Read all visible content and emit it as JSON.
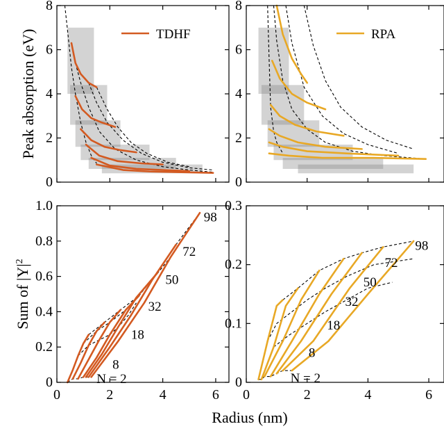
{
  "chart_data": [
    {
      "id": "tl",
      "type": "line",
      "legend": "TDHF",
      "color": "#d35a21",
      "xlim": [
        0,
        6.5
      ],
      "ylim": [
        0,
        8
      ],
      "xticks": [
        0,
        2,
        4,
        6
      ],
      "yticks": [
        0,
        2,
        4,
        6,
        8
      ],
      "ytick_labels": [
        "0",
        "2",
        "4",
        "6",
        "8"
      ],
      "ylabel": "Peak absorption (eV)",
      "boxes": [
        {
          "x": [
            0.4,
            1.4
          ],
          "y": [
            4.0,
            7.0
          ]
        },
        {
          "x": [
            0.5,
            1.9
          ],
          "y": [
            2.6,
            4.4
          ]
        },
        {
          "x": [
            0.7,
            2.4
          ],
          "y": [
            1.6,
            2.8
          ]
        },
        {
          "x": [
            0.9,
            3.5
          ],
          "y": [
            1.0,
            1.7
          ]
        },
        {
          "x": [
            1.2,
            4.5
          ],
          "y": [
            0.6,
            1.1
          ]
        },
        {
          "x": [
            1.7,
            5.5
          ],
          "y": [
            0.4,
            0.8
          ]
        }
      ],
      "series": [
        {
          "x": [
            0.55,
            0.7,
            0.9,
            1.2,
            1.5
          ],
          "y": [
            6.3,
            5.4,
            4.9,
            4.5,
            4.3
          ]
        },
        {
          "x": [
            0.7,
            0.95,
            1.3,
            1.7,
            2.2
          ],
          "y": [
            3.9,
            3.3,
            2.9,
            2.7,
            2.5
          ]
        },
        {
          "x": [
            0.9,
            1.3,
            1.8,
            2.4,
            3.0
          ],
          "y": [
            2.4,
            1.9,
            1.6,
            1.45,
            1.35
          ]
        },
        {
          "x": [
            1.1,
            1.6,
            2.3,
            3.2,
            4.0
          ],
          "y": [
            1.7,
            1.2,
            0.95,
            0.85,
            0.8
          ]
        },
        {
          "x": [
            1.3,
            2.0,
            3.0,
            4.0,
            5.0
          ],
          "y": [
            1.1,
            0.75,
            0.6,
            0.55,
            0.5
          ]
        },
        {
          "x": [
            1.5,
            2.5,
            3.5,
            4.7,
            5.9
          ],
          "y": [
            0.8,
            0.55,
            0.48,
            0.45,
            0.42
          ]
        }
      ],
      "dashed": [
        {
          "x": [
            0.3,
            0.4,
            0.55,
            0.7,
            0.9,
            1.1,
            1.3,
            1.5
          ],
          "y": [
            8.0,
            6.9,
            5.2,
            4.0,
            2.7,
            1.8,
            1.2,
            0.85
          ]
        },
        {
          "x": [
            0.7,
            0.9,
            1.2,
            1.6,
            2.2,
            3.0,
            4.0,
            5.0,
            5.9
          ],
          "y": [
            5.4,
            4.5,
            3.4,
            2.3,
            1.5,
            1.0,
            0.7,
            0.55,
            0.45
          ]
        },
        {
          "x": [
            1.2,
            1.5,
            1.9,
            2.5,
            3.2,
            4.0,
            5.0,
            5.9
          ],
          "y": [
            4.5,
            3.6,
            2.7,
            1.9,
            1.3,
            0.9,
            0.65,
            0.55
          ]
        },
        {
          "x": [
            1.5,
            1.9,
            2.3,
            2.8,
            3.4,
            4.2,
            5.0
          ],
          "y": [
            4.3,
            3.3,
            2.5,
            1.8,
            1.3,
            0.9,
            0.7
          ]
        }
      ]
    },
    {
      "id": "tr",
      "type": "line",
      "legend": "RPA",
      "color": "#e8a825",
      "xlim": [
        0,
        6.5
      ],
      "ylim": [
        0,
        8
      ],
      "xticks": [
        0,
        2,
        4,
        6
      ],
      "yticks": [
        0,
        2,
        4,
        6,
        8
      ],
      "ytick_labels": [
        "0",
        "2",
        "4",
        "6",
        "8"
      ],
      "ylabel": "",
      "boxes": [
        {
          "x": [
            0.4,
            1.4
          ],
          "y": [
            4.0,
            7.0
          ]
        },
        {
          "x": [
            0.5,
            1.9
          ],
          "y": [
            2.6,
            4.4
          ]
        },
        {
          "x": [
            0.7,
            2.4
          ],
          "y": [
            1.6,
            2.8
          ]
        },
        {
          "x": [
            0.9,
            3.5
          ],
          "y": [
            1.0,
            1.7
          ]
        },
        {
          "x": [
            1.2,
            4.5
          ],
          "y": [
            0.6,
            1.1
          ]
        },
        {
          "x": [
            1.7,
            5.5
          ],
          "y": [
            0.4,
            0.8
          ]
        }
      ],
      "series": [
        {
          "x": [
            1.0,
            1.2,
            1.5,
            1.8,
            2.0
          ],
          "y": [
            8.0,
            6.7,
            5.6,
            4.9,
            4.5
          ]
        },
        {
          "x": [
            0.85,
            1.1,
            1.5,
            2.0,
            2.6
          ],
          "y": [
            5.5,
            4.7,
            4.0,
            3.6,
            3.3
          ]
        },
        {
          "x": [
            0.8,
            1.1,
            1.6,
            2.3,
            3.2
          ],
          "y": [
            3.5,
            3.0,
            2.6,
            2.3,
            2.1
          ]
        },
        {
          "x": [
            0.75,
            1.1,
            1.7,
            2.6,
            3.8
          ],
          "y": [
            2.4,
            2.1,
            1.8,
            1.6,
            1.5
          ]
        },
        {
          "x": [
            0.75,
            1.2,
            2.0,
            3.3,
            5.0
          ],
          "y": [
            1.8,
            1.6,
            1.4,
            1.3,
            1.2
          ]
        },
        {
          "x": [
            0.75,
            1.4,
            2.5,
            4.2,
            5.9
          ],
          "y": [
            1.3,
            1.2,
            1.1,
            1.1,
            1.05
          ]
        }
      ],
      "dashed": [
        {
          "x": [
            0.7,
            0.75,
            0.8,
            0.9,
            1.0,
            1.2
          ],
          "y": [
            8.0,
            5.6,
            3.4,
            2.3,
            1.8,
            1.3
          ]
        },
        {
          "x": [
            0.9,
            1.0,
            1.2,
            1.5,
            2.0,
            2.6,
            3.5,
            4.5,
            5.9
          ],
          "y": [
            8.0,
            6.4,
            4.6,
            3.3,
            2.4,
            1.8,
            1.4,
            1.2,
            1.05
          ]
        },
        {
          "x": [
            1.3,
            1.5,
            1.9,
            2.5,
            3.2,
            4.0,
            5.0
          ],
          "y": [
            8.0,
            6.3,
            4.3,
            3.0,
            2.2,
            1.7,
            1.3
          ]
        },
        {
          "x": [
            1.9,
            2.2,
            2.6,
            3.1,
            3.8,
            4.6,
            5.5
          ],
          "y": [
            8.0,
            6.2,
            4.6,
            3.4,
            2.5,
            1.9,
            1.5
          ]
        }
      ]
    },
    {
      "id": "bl",
      "type": "line",
      "color": "#d35a21",
      "xlim": [
        0,
        6.5
      ],
      "ylim": [
        0,
        1.0
      ],
      "xticks": [
        0,
        2,
        4,
        6
      ],
      "yticks": [
        0,
        0.2,
        0.4,
        0.6,
        0.8,
        1.0
      ],
      "ytick_labels": [
        "0",
        "0.2",
        "0.4",
        "0.6",
        "0.8",
        "1.0"
      ],
      "xlabel": "Radius (nm)",
      "ylabel_main": "Sum of |Y|",
      "ylabel_sup": "2",
      "series": [
        {
          "x": [
            0.4,
            0.6,
            0.8,
            1.0,
            1.2
          ],
          "y": [
            0.0,
            0.07,
            0.15,
            0.22,
            0.27
          ]
        },
        {
          "x": [
            0.6,
            0.9,
            1.2,
            1.5,
            1.8
          ],
          "y": [
            0.02,
            0.11,
            0.21,
            0.29,
            0.34
          ]
        },
        {
          "x": [
            0.8,
            1.2,
            1.6,
            2.0,
            2.4
          ],
          "y": [
            0.02,
            0.13,
            0.24,
            0.34,
            0.41
          ]
        },
        {
          "x": [
            1.0,
            1.5,
            2.0,
            2.6,
            3.1
          ],
          "y": [
            0.03,
            0.14,
            0.27,
            0.41,
            0.49
          ]
        },
        {
          "x": [
            1.1,
            1.7,
            2.3,
            3.0,
            3.8
          ],
          "y": [
            0.03,
            0.16,
            0.31,
            0.48,
            0.62
          ]
        },
        {
          "x": [
            1.2,
            2.0,
            2.8,
            3.6,
            4.5
          ],
          "y": [
            0.03,
            0.2,
            0.38,
            0.58,
            0.78
          ]
        },
        {
          "x": [
            1.3,
            2.3,
            3.3,
            4.3,
            5.4
          ],
          "y": [
            0.03,
            0.23,
            0.45,
            0.71,
            0.96
          ]
        }
      ],
      "dashed": [
        {
          "x": [
            1.2,
            1.8,
            2.4,
            3.1,
            3.8,
            4.5,
            5.4
          ],
          "y": [
            0.27,
            0.34,
            0.41,
            0.49,
            0.62,
            0.78,
            0.96
          ]
        },
        {
          "x": [
            0.4,
            0.6,
            0.8,
            1.0,
            1.1,
            1.2,
            1.3
          ],
          "y": [
            0.0,
            0.02,
            0.02,
            0.03,
            0.03,
            0.03,
            0.03
          ]
        },
        {
          "x": [
            0.8,
            1.2,
            1.6,
            2.0,
            2.3,
            2.7,
            3.0
          ],
          "y": [
            0.15,
            0.21,
            0.24,
            0.27,
            0.31,
            0.38,
            0.45
          ]
        },
        {
          "x": [
            1.0,
            1.5,
            2.0,
            2.6,
            3.0,
            3.6,
            4.3
          ],
          "y": [
            0.22,
            0.29,
            0.34,
            0.41,
            0.48,
            0.58,
            0.71
          ]
        }
      ],
      "annotations": [
        {
          "text": "98",
          "x": 5.55,
          "y": 0.935
        },
        {
          "text": "72",
          "x": 4.75,
          "y": 0.74
        },
        {
          "text": "50",
          "x": 4.1,
          "y": 0.58
        },
        {
          "text": "32",
          "x": 3.45,
          "y": 0.43
        },
        {
          "text": "18",
          "x": 2.8,
          "y": 0.27
        },
        {
          "text": "8",
          "x": 2.1,
          "y": 0.1
        },
        {
          "text": "N = 2",
          "x": 1.5,
          "y": 0.02
        }
      ]
    },
    {
      "id": "br",
      "type": "line",
      "color": "#e8a825",
      "xlim": [
        0,
        6.5
      ],
      "ylim": [
        0,
        0.3
      ],
      "xticks": [
        0,
        2,
        4,
        6
      ],
      "yticks": [
        0,
        0.1,
        0.2,
        0.3
      ],
      "ytick_labels": [
        "0",
        "0.1",
        "0.2",
        "0.3"
      ],
      "series": [
        {
          "x": [
            0.4,
            0.7,
            1.0,
            1.2
          ],
          "y": [
            0.005,
            0.07,
            0.13,
            0.14
          ]
        },
        {
          "x": [
            0.5,
            0.9,
            1.3,
            1.7
          ],
          "y": [
            0.005,
            0.06,
            0.13,
            0.16
          ]
        },
        {
          "x": [
            0.6,
            1.2,
            1.8,
            2.4
          ],
          "y": [
            0.01,
            0.07,
            0.14,
            0.19
          ]
        },
        {
          "x": [
            0.8,
            1.5,
            2.4,
            3.2
          ],
          "y": [
            0.01,
            0.07,
            0.15,
            0.21
          ]
        },
        {
          "x": [
            1.0,
            1.8,
            2.8,
            3.8
          ],
          "y": [
            0.015,
            0.07,
            0.15,
            0.22
          ]
        },
        {
          "x": [
            1.2,
            2.2,
            3.4,
            4.5
          ],
          "y": [
            0.02,
            0.07,
            0.16,
            0.23
          ]
        },
        {
          "x": [
            1.5,
            2.7,
            4.0,
            5.5
          ],
          "y": [
            0.02,
            0.07,
            0.15,
            0.24
          ]
        }
      ],
      "dashed": [
        {
          "x": [
            1.2,
            1.7,
            2.4,
            3.2,
            3.8,
            4.5,
            5.5
          ],
          "y": [
            0.14,
            0.16,
            0.19,
            0.21,
            0.22,
            0.23,
            0.24
          ]
        },
        {
          "x": [
            0.4,
            0.5,
            0.6,
            0.8,
            1.0,
            1.2,
            1.5
          ],
          "y": [
            0.005,
            0.005,
            0.01,
            0.01,
            0.015,
            0.02,
            0.02
          ]
        },
        {
          "x": [
            0.7,
            1.0,
            1.5,
            2.0,
            2.6,
            3.3,
            4.2,
            5.5
          ],
          "y": [
            0.07,
            0.1,
            0.12,
            0.14,
            0.16,
            0.18,
            0.2,
            0.21
          ]
        },
        {
          "x": [
            0.9,
            1.4,
            2.0,
            2.6,
            3.3,
            4.0,
            4.8
          ],
          "y": [
            0.06,
            0.08,
            0.1,
            0.12,
            0.14,
            0.16,
            0.17
          ]
        }
      ],
      "annotations": [
        {
          "text": "98",
          "x": 5.55,
          "y": 0.232
        },
        {
          "text": "72",
          "x": 4.55,
          "y": 0.203
        },
        {
          "text": "50",
          "x": 3.85,
          "y": 0.17
        },
        {
          "text": "32",
          "x": 3.25,
          "y": 0.137
        },
        {
          "text": "18",
          "x": 2.65,
          "y": 0.097
        },
        {
          "text": "8",
          "x": 2.05,
          "y": 0.05
        },
        {
          "text": "N = 2",
          "x": 1.45,
          "y": 0.007
        }
      ]
    }
  ]
}
